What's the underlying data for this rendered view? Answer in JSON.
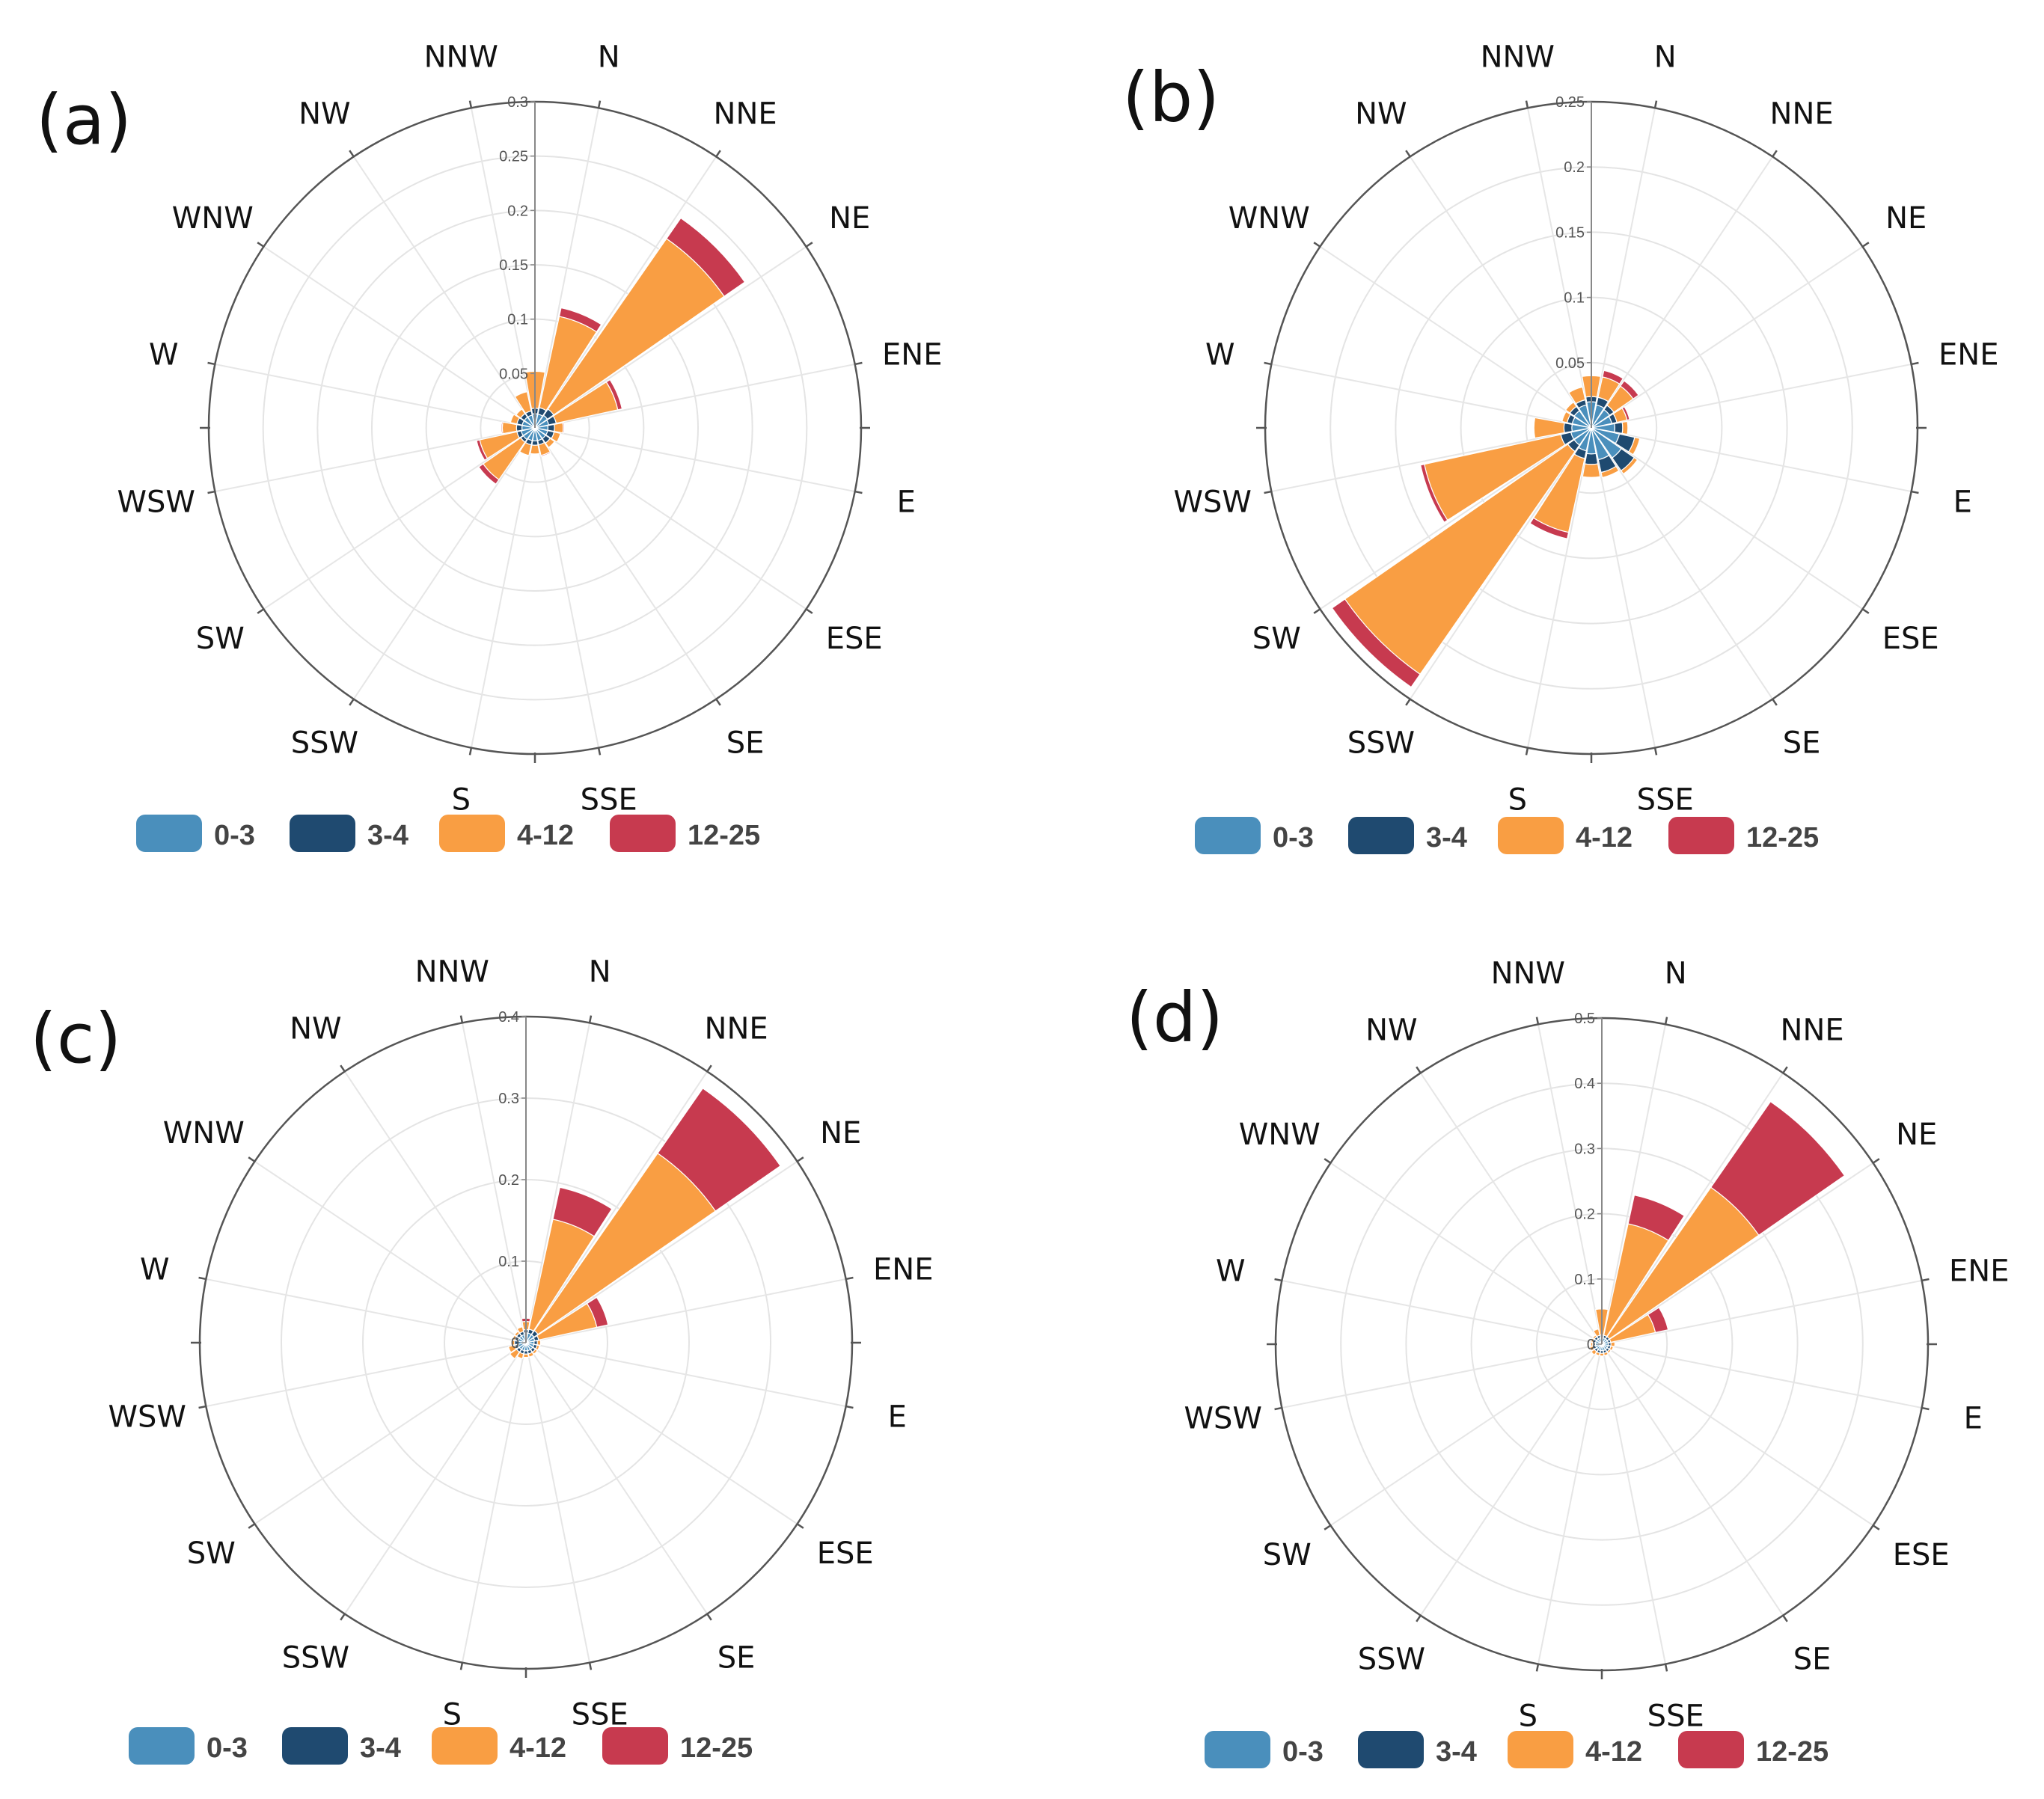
{
  "figure": {
    "legend": [
      {
        "label": "0-3",
        "color": "#4a8fbc"
      },
      {
        "label": "3-4",
        "color": "#1f4a70"
      },
      {
        "label": "4-12",
        "color": "#f99e43"
      },
      {
        "label": "12-25",
        "color": "#c73a4f"
      }
    ],
    "directions": [
      "N",
      "NNE",
      "NE",
      "ENE",
      "E",
      "ESE",
      "SE",
      "SSE",
      "S",
      "SSW",
      "SW",
      "WSW",
      "W",
      "WNW",
      "NW",
      "NNW"
    ]
  },
  "chart_data": [
    {
      "type": "windrose",
      "panel": "(a)",
      "rmax": 0.3,
      "ticks": [
        "0.05",
        "0.1",
        "0.15",
        "0.2",
        "0.25",
        "0.3"
      ],
      "tick_values": [
        0.05,
        0.1,
        0.15,
        0.2,
        0.25,
        0.3
      ],
      "series": [
        {
          "name": "0-3",
          "values": [
            0.013,
            0.013,
            0.014,
            0.013,
            0.012,
            0.012,
            0.012,
            0.012,
            0.012,
            0.012,
            0.013,
            0.013,
            0.012,
            0.012,
            0.012,
            0.012
          ]
        },
        {
          "name": "3-4",
          "values": [
            0.005,
            0.006,
            0.007,
            0.007,
            0.006,
            0.006,
            0.005,
            0.004,
            0.004,
            0.004,
            0.003,
            0.004,
            0.005,
            0.005,
            0.004,
            0.004
          ]
        },
        {
          "name": "4-12",
          "values": [
            0.034,
            0.086,
            0.191,
            0.058,
            0.008,
            0.006,
            0.005,
            0.01,
            0.008,
            0.01,
            0.042,
            0.035,
            0.013,
            0.006,
            0.005,
            0.018
          ]
        },
        {
          "name": "12-25",
          "values": [
            0.0,
            0.008,
            0.023,
            0.004,
            0.001,
            0.0,
            0.0,
            0.001,
            0.0,
            0.0,
            0.005,
            0.003,
            0.001,
            0.0,
            0.0,
            0.0
          ]
        }
      ]
    },
    {
      "type": "windrose",
      "panel": "(b)",
      "rmax": 0.25,
      "ticks": [
        "0.05",
        "0.1",
        "0.15",
        "0.2",
        "0.25"
      ],
      "tick_values": [
        0.05,
        0.1,
        0.15,
        0.2,
        0.25
      ],
      "series": [
        {
          "name": "0-3",
          "values": [
            0.02,
            0.018,
            0.017,
            0.016,
            0.018,
            0.022,
            0.028,
            0.025,
            0.02,
            0.018,
            0.016,
            0.016,
            0.015,
            0.015,
            0.016,
            0.018
          ]
        },
        {
          "name": "3-4",
          "values": [
            0.004,
            0.006,
            0.004,
            0.004,
            0.006,
            0.012,
            0.012,
            0.01,
            0.008,
            0.006,
            0.006,
            0.008,
            0.006,
            0.004,
            0.004,
            0.004
          ]
        },
        {
          "name": "4-12",
          "values": [
            0.016,
            0.016,
            0.018,
            0.008,
            0.004,
            0.004,
            0.003,
            0.004,
            0.01,
            0.058,
            0.208,
            0.107,
            0.023,
            0.004,
            0.004,
            0.01
          ]
        },
        {
          "name": "12-25",
          "values": [
            0.0,
            0.005,
            0.005,
            0.002,
            0.0,
            0.0,
            0.0,
            0.0,
            0.0,
            0.005,
            0.012,
            0.003,
            0.0,
            0.0,
            0.0,
            0.0
          ]
        }
      ]
    },
    {
      "type": "windrose",
      "panel": "(c)",
      "rmax": 0.4,
      "ticks": [
        "0",
        "0.1",
        "0.2",
        "0.3",
        "0.4"
      ],
      "tick_values": [
        0,
        0.1,
        0.2,
        0.3,
        0.4
      ],
      "series": [
        {
          "name": "0-3",
          "values": [
            0.012,
            0.012,
            0.012,
            0.011,
            0.01,
            0.01,
            0.01,
            0.01,
            0.01,
            0.01,
            0.01,
            0.01,
            0.01,
            0.01,
            0.01,
            0.01
          ]
        },
        {
          "name": "3-4",
          "values": [
            0.004,
            0.005,
            0.006,
            0.005,
            0.004,
            0.004,
            0.004,
            0.004,
            0.004,
            0.004,
            0.004,
            0.004,
            0.004,
            0.004,
            0.004,
            0.004
          ]
        },
        {
          "name": "4-12",
          "values": [
            0.01,
            0.138,
            0.265,
            0.073,
            0.004,
            0.003,
            0.003,
            0.004,
            0.004,
            0.006,
            0.01,
            0.008,
            0.004,
            0.003,
            0.003,
            0.006
          ]
        },
        {
          "name": "12-25",
          "values": [
            0.004,
            0.04,
            0.097,
            0.014,
            0.0,
            0.0,
            0.0,
            0.0,
            0.0,
            0.0,
            0.0,
            0.0,
            0.0,
            0.0,
            0.0,
            0.0
          ]
        }
      ]
    },
    {
      "type": "windrose",
      "panel": "(d)",
      "rmax": 0.5,
      "ticks": [
        "0",
        "0.1",
        "0.2",
        "0.3",
        "0.4",
        "0.5"
      ],
      "tick_values": [
        0,
        0.1,
        0.2,
        0.3,
        0.4,
        0.5
      ],
      "series": [
        {
          "name": "0-3",
          "values": [
            0.01,
            0.01,
            0.01,
            0.01,
            0.01,
            0.01,
            0.01,
            0.01,
            0.01,
            0.01,
            0.01,
            0.01,
            0.01,
            0.01,
            0.01,
            0.01
          ]
        },
        {
          "name": "3-4",
          "values": [
            0.004,
            0.004,
            0.004,
            0.004,
            0.004,
            0.004,
            0.004,
            0.004,
            0.004,
            0.004,
            0.004,
            0.004,
            0.004,
            0.004,
            0.004,
            0.004
          ]
        },
        {
          "name": "4-12",
          "values": [
            0.04,
            0.175,
            0.279,
            0.07,
            0.006,
            0.004,
            0.003,
            0.004,
            0.004,
            0.004,
            0.006,
            0.005,
            0.003,
            0.003,
            0.003,
            0.01
          ]
        },
        {
          "name": "12-25",
          "values": [
            0.0,
            0.045,
            0.16,
            0.02,
            0.0,
            0.0,
            0.0,
            0.0,
            0.0,
            0.0,
            0.0,
            0.0,
            0.0,
            0.0,
            0.0,
            0.0
          ]
        }
      ]
    }
  ]
}
